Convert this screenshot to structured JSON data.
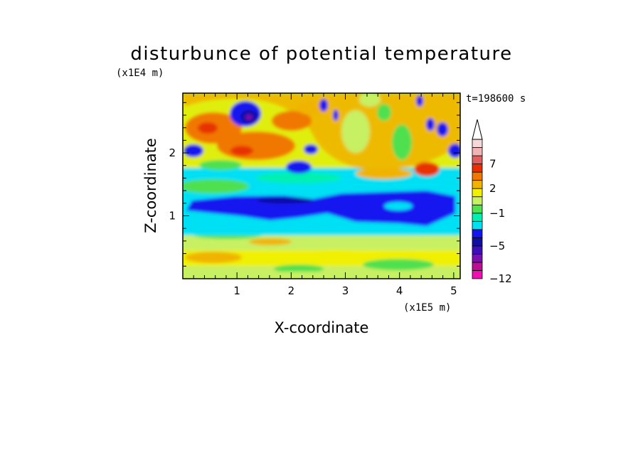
{
  "chart_data": {
    "type": "heatmap",
    "title": "disturbunce of potential temperature",
    "xlabel": "X-coordinate",
    "ylabel": "Z-coordinate",
    "x_unit": "(x1E5 m)",
    "y_unit": "(x1E4 m)",
    "time_label": "t=198600 s",
    "x_range": [
      0,
      5.12
    ],
    "y_range": [
      0,
      2.95
    ],
    "x_ticks": [
      "1",
      "2",
      "3",
      "4",
      "5"
    ],
    "x_tick_values": [
      1,
      2,
      3,
      4,
      5
    ],
    "y_ticks": [
      "1",
      "2"
    ],
    "y_tick_values": [
      1,
      2
    ],
    "colorbar": {
      "levels": [
        -12,
        -10,
        -8,
        -6,
        -5,
        -4,
        -3,
        -2,
        -1,
        0,
        1,
        2,
        3,
        5,
        7,
        9,
        11
      ],
      "labels": [
        "7",
        "2",
        "−1",
        "−5",
        "−12"
      ],
      "label_values": [
        7,
        2,
        -1,
        -5,
        -12
      ],
      "colors": [
        "#ee10b0",
        "#b81090",
        "#7a10b0",
        "#3c10b8",
        "#1010a0",
        "#1414f0",
        "#00e0f4",
        "#00f0b4",
        "#50e050",
        "#c8f064",
        "#f0f000",
        "#f0b400",
        "#f07800",
        "#e83000",
        "#e06060",
        "#f0b4b4",
        "#f6d8d8"
      ],
      "extend_max": true
    }
  }
}
